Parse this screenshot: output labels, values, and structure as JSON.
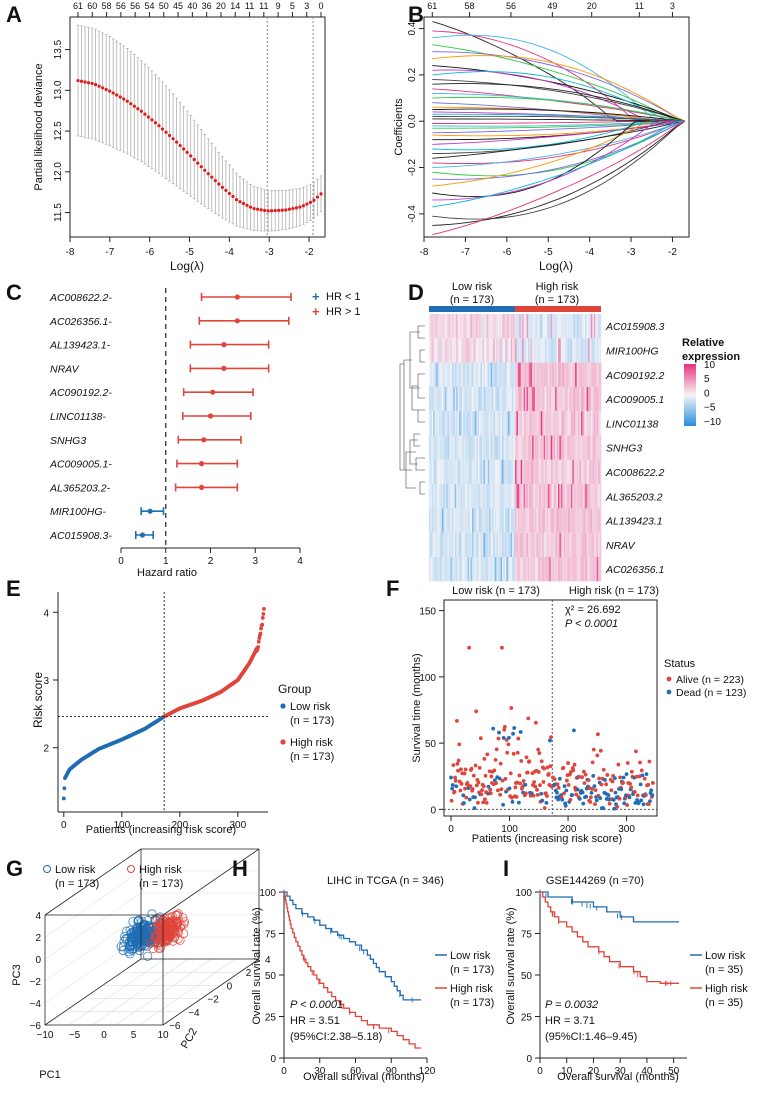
{
  "figure": {
    "colors": {
      "blue": "#1f6db5",
      "red": "#e0453b",
      "grey": "#9a9a9a",
      "heat_high": "#e8327a",
      "heat_low": "#2a8de0"
    }
  },
  "panels": {
    "A": {
      "letter": "A",
      "top_ticks": [
        "61",
        "60",
        "58",
        "56",
        "56",
        "54",
        "50",
        "45",
        "40",
        "36",
        "20",
        "14",
        "11",
        "11",
        "9",
        "5",
        "3",
        "0"
      ],
      "chart_data": {
        "type": "line",
        "title": "",
        "xlabel": "Log(λ)",
        "ylabel": "Partial likelihood deviance",
        "xlim": [
          -8,
          -1.6
        ],
        "ylim": [
          11.2,
          13.9
        ],
        "x_ticks": [
          "-8",
          "-7",
          "-6",
          "-5",
          "-4",
          "-3",
          "-2"
        ],
        "y_ticks": [
          "11.5",
          "12.0",
          "12.5",
          "13.0",
          "13.5"
        ],
        "vlines": [
          -3.05,
          -1.9
        ],
        "points": [
          [
            -7.8,
            13.12
          ],
          [
            -7.4,
            13.08
          ],
          [
            -7.0,
            12.99
          ],
          [
            -6.6,
            12.88
          ],
          [
            -6.2,
            12.74
          ],
          [
            -5.8,
            12.58
          ],
          [
            -5.4,
            12.4
          ],
          [
            -5.0,
            12.21
          ],
          [
            -4.6,
            12.01
          ],
          [
            -4.2,
            11.82
          ],
          [
            -3.8,
            11.65
          ],
          [
            -3.4,
            11.55
          ],
          [
            -3.05,
            11.52
          ],
          [
            -2.6,
            11.53
          ],
          [
            -2.2,
            11.57
          ],
          [
            -1.9,
            11.64
          ],
          [
            -1.7,
            11.73
          ]
        ],
        "error_half": [
          0.68,
          0.68,
          0.67,
          0.65,
          0.62,
          0.59,
          0.55,
          0.5,
          0.44,
          0.38,
          0.32,
          0.27,
          0.25,
          0.24,
          0.23,
          0.22,
          0.22
        ]
      }
    },
    "B": {
      "letter": "B",
      "top_ticks": [
        "61",
        "58",
        "56",
        "49",
        "20",
        "11",
        "3"
      ],
      "chart_data": {
        "type": "line",
        "title": "",
        "xlabel": "Log(λ)",
        "ylabel": "Coefficients",
        "xlim": [
          -8,
          -1.6
        ],
        "ylim": [
          -0.5,
          0.45
        ],
        "x_ticks": [
          "-8",
          "-7",
          "-6",
          "-5",
          "-4",
          "-3",
          "-2"
        ],
        "y_ticks": [
          "-0.4",
          "-0.2",
          "0.0",
          "0.2",
          "0.4"
        ],
        "top_tick_x": [
          -7.8,
          -6.9,
          -5.9,
          -4.9,
          -3.95,
          -2.8,
          -2.0
        ],
        "start_coefs": [
          0.43,
          0.39,
          0.36,
          0.33,
          0.3,
          0.27,
          0.24,
          0.22,
          0.2,
          0.18,
          0.16,
          0.14,
          0.12,
          0.1,
          0.08,
          0.06,
          0.05,
          0.04,
          0.03,
          0.02,
          0.01,
          -0.01,
          -0.02,
          -0.03,
          -0.05,
          -0.06,
          -0.08,
          -0.1,
          -0.12,
          -0.14,
          -0.16,
          -0.18,
          -0.2,
          -0.22,
          -0.25,
          -0.28,
          -0.31,
          -0.34,
          -0.37,
          -0.41,
          -0.45,
          -0.49
        ]
      }
    },
    "C": {
      "letter": "C",
      "legend": [
        {
          "label": "HR < 1",
          "color": "#1f6db5"
        },
        {
          "label": "HR > 1",
          "color": "#e0453b"
        }
      ],
      "chart_data": {
        "type": "forest",
        "xlabel": "Hazard ratio",
        "xlim": [
          0,
          4
        ],
        "x_ticks": [
          "0",
          "1",
          "2",
          "3",
          "4"
        ],
        "ref_line": 1,
        "rows": [
          {
            "label": "AC008622.2-",
            "hr": 2.6,
            "lo": 1.8,
            "hi": 3.8
          },
          {
            "label": "AC026356.1-",
            "hr": 2.6,
            "lo": 1.75,
            "hi": 3.75
          },
          {
            "label": "AL139423.1-",
            "hr": 2.3,
            "lo": 1.55,
            "hi": 3.3
          },
          {
            "label": "NRAV",
            "hr": 2.3,
            "lo": 1.55,
            "hi": 3.3
          },
          {
            "label": "AC090192.2-",
            "hr": 2.05,
            "lo": 1.4,
            "hi": 2.95
          },
          {
            "label": "LINC01138-",
            "hr": 2.0,
            "lo": 1.38,
            "hi": 2.9
          },
          {
            "label": "SNHG3",
            "hr": 1.85,
            "lo": 1.28,
            "hi": 2.68
          },
          {
            "label": "AC009005.1-",
            "hr": 1.8,
            "lo": 1.25,
            "hi": 2.6
          },
          {
            "label": "AL365203.2-",
            "hr": 1.8,
            "lo": 1.22,
            "hi": 2.6
          },
          {
            "label": "MIR100HG-",
            "hr": 0.65,
            "lo": 0.45,
            "hi": 0.95
          },
          {
            "label": "AC015908.3-",
            "hr": 0.48,
            "lo": 0.33,
            "hi": 0.72
          }
        ]
      }
    },
    "D": {
      "letter": "D",
      "group_low": "Low risk",
      "group_low_n": "(n = 173)",
      "group_high": "High risk",
      "group_high_n": "(n = 173)",
      "legend_title_1": "Relative",
      "legend_title_2": "expression",
      "chart_data": {
        "type": "heatmap",
        "rows": [
          "AC015908.3",
          "MIR100HG",
          "AC090192.2",
          "AC009005.1",
          "LINC01138",
          "SNHG3",
          "AC008622.2",
          "AL365203.2",
          "AL139423.1",
          "NRAV",
          "AC026356.1"
        ],
        "scale_ticks": [
          "10",
          "5",
          "0",
          "−5",
          "−10"
        ],
        "scale_range": [
          -10,
          10
        ]
      }
    },
    "E": {
      "letter": "E",
      "legend_title": "Group",
      "legend": [
        {
          "label": "Low risk",
          "n": "(n = 173)"
        },
        {
          "label": "High risk",
          "n": "(n = 173)"
        }
      ],
      "chart_data": {
        "type": "scatter",
        "xlabel": "Patients (increasing risk score)",
        "ylabel": "Risk score",
        "xlim": [
          -10,
          352
        ],
        "ylim": [
          1.05,
          4.3
        ],
        "x_ticks": [
          "0",
          "100",
          "200",
          "300"
        ],
        "y_ticks": [
          "2",
          "3",
          "4"
        ],
        "cutoff_x": 173,
        "cutoff_y": 2.46,
        "curve": [
          [
            0,
            1.25
          ],
          [
            2,
            1.55
          ],
          [
            10,
            1.68
          ],
          [
            30,
            1.82
          ],
          [
            60,
            1.98
          ],
          [
            100,
            2.12
          ],
          [
            140,
            2.28
          ],
          [
            173,
            2.46
          ],
          [
            200,
            2.58
          ],
          [
            240,
            2.7
          ],
          [
            270,
            2.82
          ],
          [
            300,
            3.0
          ],
          [
            320,
            3.25
          ],
          [
            335,
            3.5
          ],
          [
            342,
            3.85
          ],
          [
            345,
            4.05
          ]
        ]
      }
    },
    "F": {
      "letter": "F",
      "low_label": "Low risk (n = 173)",
      "high_label": "High risk (n = 173)",
      "chi_label": "χ² = 26.692",
      "p_label": "P < 0.0001",
      "legend_title": "Status",
      "legend": [
        {
          "label": "Alive (n = 223)",
          "color": "#e0453b"
        },
        {
          "label": "Dead (n = 123)",
          "color": "#1f6db5"
        }
      ],
      "chart_data": {
        "type": "scatter",
        "xlabel": "Patients (increasing risk score)",
        "ylabel": "Survival time (months)",
        "xlim": [
          -12,
          352
        ],
        "ylim": [
          -5,
          158
        ],
        "x_ticks": [
          "0",
          "100",
          "200",
          "300"
        ],
        "y_ticks": [
          "0",
          "50",
          "100",
          "150"
        ],
        "cutoff_x": 173,
        "n_alive": 223,
        "n_dead": 123
      }
    },
    "G": {
      "letter": "G",
      "legend_low": "Low risk",
      "legend_low_n": "(n = 173)",
      "legend_high": "High risk",
      "legend_high_n": "(n = 173)",
      "chart_data": {
        "type": "scatter3d",
        "xlabel": "PC1",
        "ylabel": "PC2",
        "zlabel": "PC3",
        "pc1_ticks": [
          "−10",
          "−5",
          "0",
          "5",
          "10"
        ],
        "pc2_ticks": [
          "4",
          "2",
          "0",
          "−2",
          "−4",
          "−6"
        ],
        "pc3_ticks": [
          "4",
          "2",
          "0",
          "−2",
          "−4",
          "−6"
        ]
      }
    },
    "H": {
      "letter": "H",
      "title": "LIHC in TCGA (n = 346)",
      "stats": [
        "P < 0.0001",
        "HR = 3.51",
        "(95%CI:2.38–5.18)"
      ],
      "legend": [
        {
          "label": "Low risk",
          "n": "(n = 173)",
          "color": "#1f6db5"
        },
        {
          "label": "High risk",
          "n": "(n = 173)",
          "color": "#e0453b"
        }
      ],
      "chart_data": {
        "type": "line",
        "xlabel": "Overall survival (months)",
        "ylabel": "Overall survival rate (%)",
        "xlim": [
          0,
          120
        ],
        "ylim": [
          0,
          100
        ],
        "x_ticks": [
          "0",
          "30",
          "60",
          "90",
          "120"
        ],
        "y_ticks": [
          "0",
          "25",
          "50",
          "75",
          "100"
        ],
        "series": [
          {
            "name": "Low risk",
            "points": [
              [
                0,
                100
              ],
              [
                5,
                95
              ],
              [
                10,
                90
              ],
              [
                15,
                87
              ],
              [
                20,
                85
              ],
              [
                25,
                83
              ],
              [
                30,
                80
              ],
              [
                40,
                76
              ],
              [
                50,
                72
              ],
              [
                60,
                68
              ],
              [
                70,
                62
              ],
              [
                80,
                52
              ],
              [
                90,
                46
              ],
              [
                100,
                35
              ],
              [
                115,
                35
              ]
            ]
          },
          {
            "name": "High risk",
            "points": [
              [
                0,
                100
              ],
              [
                3,
                88
              ],
              [
                6,
                78
              ],
              [
                10,
                70
              ],
              [
                15,
                62
              ],
              [
                20,
                55
              ],
              [
                25,
                50
              ],
              [
                30,
                45
              ],
              [
                40,
                37
              ],
              [
                50,
                30
              ],
              [
                60,
                25
              ],
              [
                70,
                20
              ],
              [
                80,
                18
              ],
              [
                90,
                16
              ],
              [
                100,
                11
              ],
              [
                110,
                6
              ],
              [
                115,
                6
              ]
            ]
          }
        ]
      }
    },
    "I": {
      "letter": "I",
      "title": "GSE144269 (n =70)",
      "stats": [
        "P = 0.0032",
        "HR = 3.71",
        "(95%CI:1.46–9.45)"
      ],
      "legend": [
        {
          "label": "Low risk",
          "n": "(n = 35)",
          "color": "#1f6db5"
        },
        {
          "label": "High risk",
          "n": "(n = 35)",
          "color": "#e0453b"
        }
      ],
      "chart_data": {
        "type": "line",
        "xlabel": "Overall survival (months)",
        "ylabel": "Overall survival rate (%)",
        "xlim": [
          0,
          55
        ],
        "ylim": [
          0,
          100
        ],
        "x_ticks": [
          "0",
          "10",
          "20",
          "30",
          "40",
          "50"
        ],
        "y_ticks": [
          "0",
          "25",
          "50",
          "75",
          "100"
        ],
        "series": [
          {
            "name": "Low risk",
            "points": [
              [
                0,
                100
              ],
              [
                3,
                97
              ],
              [
                8,
                97
              ],
              [
                12,
                94
              ],
              [
                20,
                91
              ],
              [
                25,
                88
              ],
              [
                30,
                85
              ],
              [
                35,
                82
              ],
              [
                45,
                82
              ],
              [
                52,
                82
              ]
            ]
          },
          {
            "name": "High risk",
            "points": [
              [
                0,
                100
              ],
              [
                2,
                94
              ],
              [
                4,
                88
              ],
              [
                7,
                82
              ],
              [
                10,
                79
              ],
              [
                14,
                73
              ],
              [
                18,
                67
              ],
              [
                22,
                64
              ],
              [
                26,
                58
              ],
              [
                30,
                55
              ],
              [
                35,
                52
              ],
              [
                40,
                46
              ],
              [
                45,
                45
              ],
              [
                52,
                45
              ]
            ]
          }
        ]
      }
    }
  }
}
